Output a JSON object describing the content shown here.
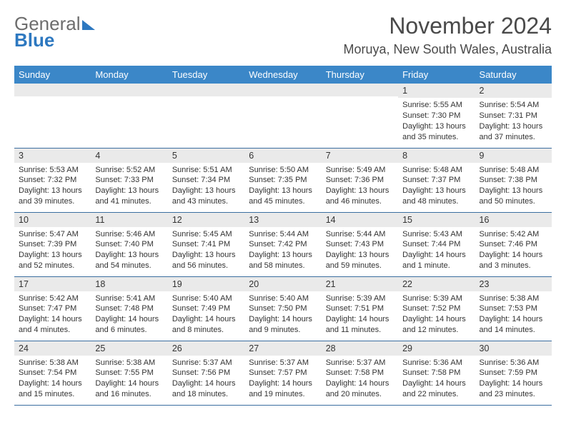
{
  "brand": {
    "part1": "General",
    "part2": "Blue"
  },
  "title": "November 2024",
  "location": "Moruya, New South Wales, Australia",
  "colors": {
    "header_bg": "#3b87c8",
    "header_text": "#ffffff",
    "daynum_bg": "#eaeaea",
    "row_border": "#3b6ea0",
    "body_text": "#333333",
    "brand_gray": "#6d6d6d",
    "brand_blue": "#2d78c0"
  },
  "typography": {
    "title_fontsize": 32,
    "location_fontsize": 18,
    "dayheader_fontsize": 13,
    "daynum_fontsize": 12.5,
    "cell_fontsize": 11
  },
  "day_names": [
    "Sunday",
    "Monday",
    "Tuesday",
    "Wednesday",
    "Thursday",
    "Friday",
    "Saturday"
  ],
  "weeks": [
    [
      {
        "n": "",
        "sr": "",
        "ss": "",
        "dl": ""
      },
      {
        "n": "",
        "sr": "",
        "ss": "",
        "dl": ""
      },
      {
        "n": "",
        "sr": "",
        "ss": "",
        "dl": ""
      },
      {
        "n": "",
        "sr": "",
        "ss": "",
        "dl": ""
      },
      {
        "n": "",
        "sr": "",
        "ss": "",
        "dl": ""
      },
      {
        "n": "1",
        "sr": "Sunrise: 5:55 AM",
        "ss": "Sunset: 7:30 PM",
        "dl": "Daylight: 13 hours and 35 minutes."
      },
      {
        "n": "2",
        "sr": "Sunrise: 5:54 AM",
        "ss": "Sunset: 7:31 PM",
        "dl": "Daylight: 13 hours and 37 minutes."
      }
    ],
    [
      {
        "n": "3",
        "sr": "Sunrise: 5:53 AM",
        "ss": "Sunset: 7:32 PM",
        "dl": "Daylight: 13 hours and 39 minutes."
      },
      {
        "n": "4",
        "sr": "Sunrise: 5:52 AM",
        "ss": "Sunset: 7:33 PM",
        "dl": "Daylight: 13 hours and 41 minutes."
      },
      {
        "n": "5",
        "sr": "Sunrise: 5:51 AM",
        "ss": "Sunset: 7:34 PM",
        "dl": "Daylight: 13 hours and 43 minutes."
      },
      {
        "n": "6",
        "sr": "Sunrise: 5:50 AM",
        "ss": "Sunset: 7:35 PM",
        "dl": "Daylight: 13 hours and 45 minutes."
      },
      {
        "n": "7",
        "sr": "Sunrise: 5:49 AM",
        "ss": "Sunset: 7:36 PM",
        "dl": "Daylight: 13 hours and 46 minutes."
      },
      {
        "n": "8",
        "sr": "Sunrise: 5:48 AM",
        "ss": "Sunset: 7:37 PM",
        "dl": "Daylight: 13 hours and 48 minutes."
      },
      {
        "n": "9",
        "sr": "Sunrise: 5:48 AM",
        "ss": "Sunset: 7:38 PM",
        "dl": "Daylight: 13 hours and 50 minutes."
      }
    ],
    [
      {
        "n": "10",
        "sr": "Sunrise: 5:47 AM",
        "ss": "Sunset: 7:39 PM",
        "dl": "Daylight: 13 hours and 52 minutes."
      },
      {
        "n": "11",
        "sr": "Sunrise: 5:46 AM",
        "ss": "Sunset: 7:40 PM",
        "dl": "Daylight: 13 hours and 54 minutes."
      },
      {
        "n": "12",
        "sr": "Sunrise: 5:45 AM",
        "ss": "Sunset: 7:41 PM",
        "dl": "Daylight: 13 hours and 56 minutes."
      },
      {
        "n": "13",
        "sr": "Sunrise: 5:44 AM",
        "ss": "Sunset: 7:42 PM",
        "dl": "Daylight: 13 hours and 58 minutes."
      },
      {
        "n": "14",
        "sr": "Sunrise: 5:44 AM",
        "ss": "Sunset: 7:43 PM",
        "dl": "Daylight: 13 hours and 59 minutes."
      },
      {
        "n": "15",
        "sr": "Sunrise: 5:43 AM",
        "ss": "Sunset: 7:44 PM",
        "dl": "Daylight: 14 hours and 1 minute."
      },
      {
        "n": "16",
        "sr": "Sunrise: 5:42 AM",
        "ss": "Sunset: 7:46 PM",
        "dl": "Daylight: 14 hours and 3 minutes."
      }
    ],
    [
      {
        "n": "17",
        "sr": "Sunrise: 5:42 AM",
        "ss": "Sunset: 7:47 PM",
        "dl": "Daylight: 14 hours and 4 minutes."
      },
      {
        "n": "18",
        "sr": "Sunrise: 5:41 AM",
        "ss": "Sunset: 7:48 PM",
        "dl": "Daylight: 14 hours and 6 minutes."
      },
      {
        "n": "19",
        "sr": "Sunrise: 5:40 AM",
        "ss": "Sunset: 7:49 PM",
        "dl": "Daylight: 14 hours and 8 minutes."
      },
      {
        "n": "20",
        "sr": "Sunrise: 5:40 AM",
        "ss": "Sunset: 7:50 PM",
        "dl": "Daylight: 14 hours and 9 minutes."
      },
      {
        "n": "21",
        "sr": "Sunrise: 5:39 AM",
        "ss": "Sunset: 7:51 PM",
        "dl": "Daylight: 14 hours and 11 minutes."
      },
      {
        "n": "22",
        "sr": "Sunrise: 5:39 AM",
        "ss": "Sunset: 7:52 PM",
        "dl": "Daylight: 14 hours and 12 minutes."
      },
      {
        "n": "23",
        "sr": "Sunrise: 5:38 AM",
        "ss": "Sunset: 7:53 PM",
        "dl": "Daylight: 14 hours and 14 minutes."
      }
    ],
    [
      {
        "n": "24",
        "sr": "Sunrise: 5:38 AM",
        "ss": "Sunset: 7:54 PM",
        "dl": "Daylight: 14 hours and 15 minutes."
      },
      {
        "n": "25",
        "sr": "Sunrise: 5:38 AM",
        "ss": "Sunset: 7:55 PM",
        "dl": "Daylight: 14 hours and 16 minutes."
      },
      {
        "n": "26",
        "sr": "Sunrise: 5:37 AM",
        "ss": "Sunset: 7:56 PM",
        "dl": "Daylight: 14 hours and 18 minutes."
      },
      {
        "n": "27",
        "sr": "Sunrise: 5:37 AM",
        "ss": "Sunset: 7:57 PM",
        "dl": "Daylight: 14 hours and 19 minutes."
      },
      {
        "n": "28",
        "sr": "Sunrise: 5:37 AM",
        "ss": "Sunset: 7:58 PM",
        "dl": "Daylight: 14 hours and 20 minutes."
      },
      {
        "n": "29",
        "sr": "Sunrise: 5:36 AM",
        "ss": "Sunset: 7:58 PM",
        "dl": "Daylight: 14 hours and 22 minutes."
      },
      {
        "n": "30",
        "sr": "Sunrise: 5:36 AM",
        "ss": "Sunset: 7:59 PM",
        "dl": "Daylight: 14 hours and 23 minutes."
      }
    ]
  ]
}
